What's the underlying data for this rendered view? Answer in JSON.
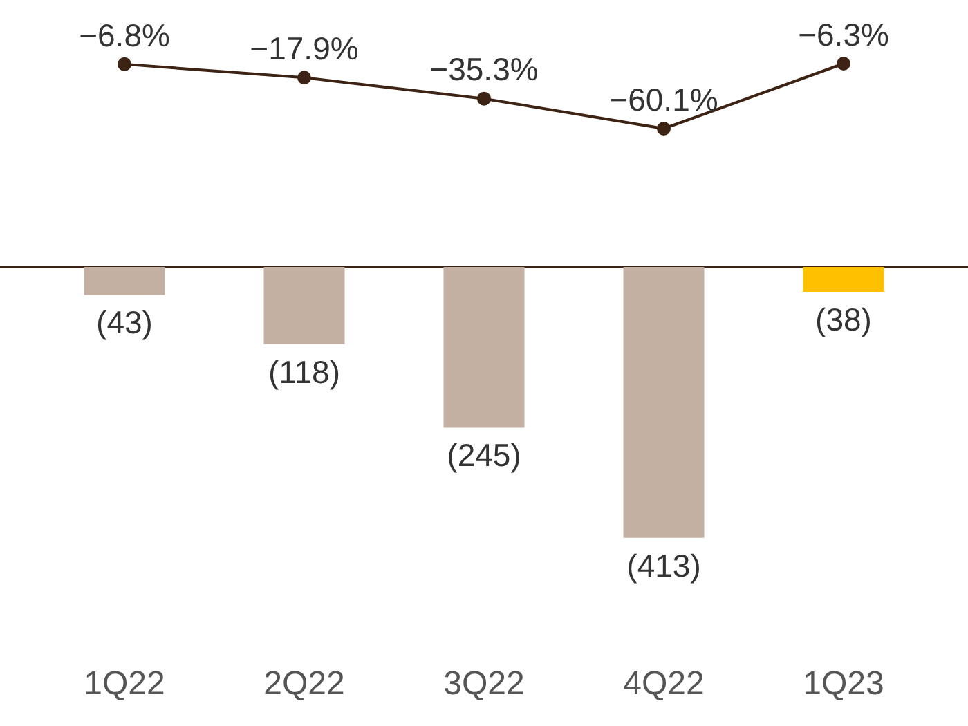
{
  "chart_data": [
    {
      "type": "line",
      "categories": [
        null,
        null,
        null,
        null,
        null
      ],
      "color": "#3d2314",
      "values": [
        -6.8,
        -17.9,
        -35.3,
        -60.1,
        -6.3
      ],
      "value_labels": [
        "−6.8%",
        "−17.9%",
        "−35.3%",
        "−60.1%",
        "−6.3%"
      ],
      "tick_labels": false,
      "marker": "circle",
      "line_style": "solid"
    },
    {
      "type": "bar",
      "categories": [
        "1Q22",
        "2Q22",
        "3Q22",
        "4Q22",
        "1Q23"
      ],
      "colors": [
        "#c4b0a3",
        "#c4b0a3",
        "#c4b0a3",
        "#c4b0a3",
        "#ffc000"
      ],
      "values": [
        -43,
        -118,
        -245,
        -413,
        -38
      ],
      "value_labels": [
        "(43)",
        "(118)",
        "(245)",
        "(413)",
        "(38)"
      ],
      "tick_labels": "x"
    }
  ]
}
